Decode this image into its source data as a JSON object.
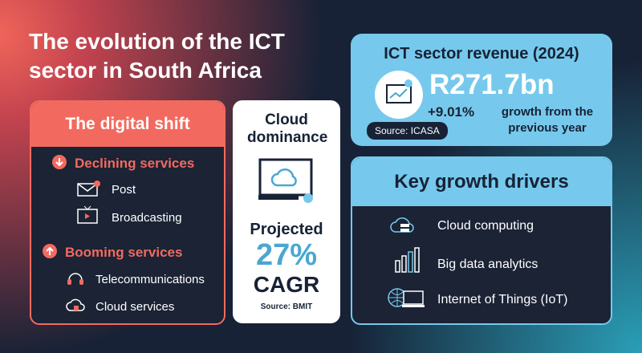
{
  "header": {
    "title": "The evolution of the ICT sector in South Africa"
  },
  "digital_shift": {
    "title": "The digital shift",
    "declining": {
      "label": "Declining services",
      "items": [
        "Post",
        "Broadcasting"
      ]
    },
    "booming": {
      "label": "Booming services",
      "items": [
        "Telecommunications",
        "Cloud services"
      ]
    }
  },
  "cloud": {
    "title": "Cloud dominance",
    "projected": "Projected",
    "rate": "27%",
    "metric": "CAGR",
    "source": "Source: BMIT"
  },
  "revenue": {
    "title": "ICT sector revenue (2024)",
    "amount": "R271.7bn",
    "growth": "+9.01%",
    "growth_text": "growth from the previous year",
    "source": "Source: ICASA"
  },
  "drivers": {
    "title": "Key growth drivers",
    "items": [
      "Cloud computing",
      "Big data analytics",
      "Internet of Things (IoT)"
    ]
  }
}
